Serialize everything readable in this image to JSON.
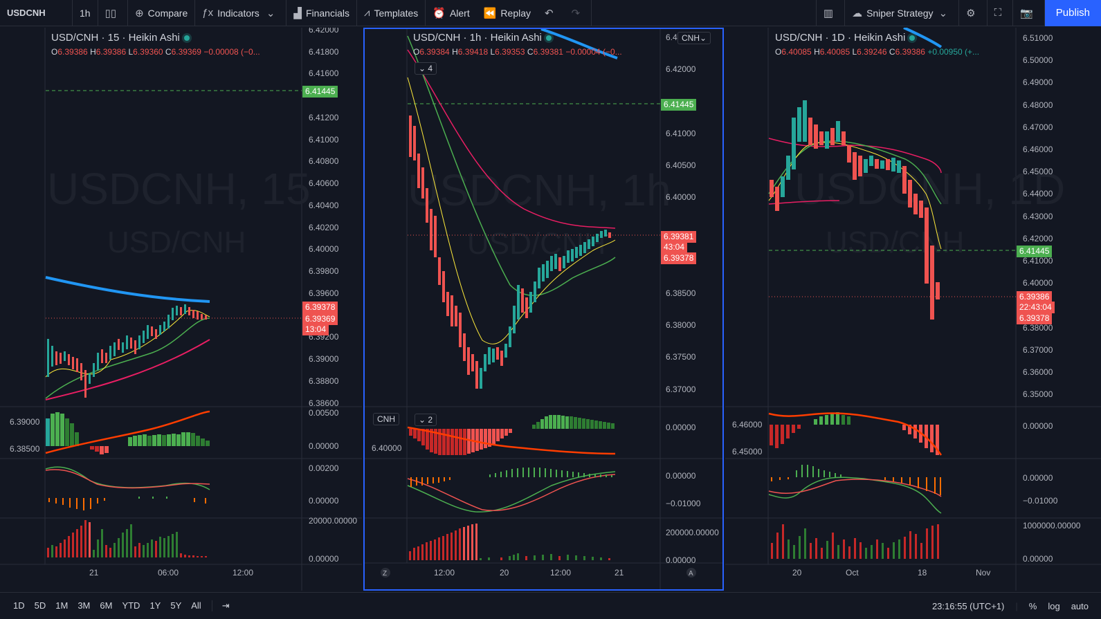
{
  "toolbar": {
    "symbol": "USDCNH",
    "interval": "1h",
    "compare": "Compare",
    "indicators": "Indicators",
    "financials": "Financials",
    "templates": "Templates",
    "alert": "Alert",
    "replay": "Replay",
    "strategy": "Sniper Strategy",
    "publish": "Publish"
  },
  "panes": [
    {
      "legend": "USD/CNH · 15 · Heikin Ashi",
      "ohlc": {
        "o": "6.39386",
        "h": "6.39386",
        "l": "6.39360",
        "c": "6.39369",
        "chg": "−0.00008 (−0..."
      },
      "watermark": "USDCNH, 15",
      "watermark2": "USD/CNH",
      "price_ticks": [
        "6.42000",
        "6.41800",
        "6.41600",
        "6.41445",
        "6.41200",
        "6.41000",
        "6.40800",
        "6.40600",
        "6.40400",
        "6.40200",
        "6.40000",
        "6.39800",
        "6.39600",
        "6.39378",
        "6.39369",
        "6.39200",
        "6.39000",
        "6.38800",
        "6.38600"
      ],
      "labels": {
        "alert": "6.41445",
        "last": "6.39378",
        "close": "6.39369",
        "countdown": "13:04"
      },
      "osc_ticks": {
        "o1a": "6.39000",
        "o1b": "6.38500",
        "o1r1": "0.00500",
        "o1r2": "0.00000",
        "o2r1": "0.00200",
        "o2r2": "0.00000",
        "o3r1": "20000.00000",
        "o3r2": "0.00000"
      },
      "time_ticks": [
        "21",
        "06:00",
        "12:00"
      ]
    },
    {
      "legend": "USD/CNH · 1h · Heikin Ashi",
      "ohlc": {
        "o": "6.39384",
        "h": "6.39418",
        "l": "6.39353",
        "c": "6.39381",
        "chg": "−0.00004 (−0..."
      },
      "watermark": "USDCNH, 1h",
      "watermark2": "USD/CNH",
      "badge_currency": "CNH",
      "badge_count": "4",
      "badge_count2": "2",
      "badge_cnh2": "CNH",
      "price_ticks": [
        "6.4",
        "6.42000",
        "6.41445",
        "6.41000",
        "6.40500",
        "6.40000",
        "6.39500",
        "6.39381",
        "6.39378",
        "6.38500",
        "6.38000",
        "6.37500",
        "6.37000"
      ],
      "labels": {
        "alert": "6.41445",
        "close": "6.39381",
        "countdown": "43:04",
        "last": "6.39378"
      },
      "osc_ticks": {
        "o1l": "6.40000",
        "o1r": "0.00000",
        "o2r1": "0.00000",
        "o2r2": "−0.01000",
        "o3r1": "200000.00000",
        "o3r2": "0.00000"
      },
      "time_ticks": [
        "12:00",
        "20",
        "12:00",
        "21"
      ],
      "scale_z": "Z",
      "scale_a": "A"
    },
    {
      "legend": "USD/CNH · 1D · Heikin Ashi",
      "ohlc": {
        "o": "6.40085",
        "h": "6.40085",
        "l": "6.39246",
        "c": "6.39386",
        "chg": "+0.00950 (+..."
      },
      "watermark": "USDCNH, 1D",
      "watermark2": "USD/CNH",
      "price_ticks": [
        "6.51000",
        "6.50000",
        "6.49000",
        "6.48000",
        "6.47000",
        "6.46000",
        "6.45000",
        "6.44000",
        "6.43000",
        "6.42000",
        "6.41445",
        "6.41000",
        "6.40000",
        "6.39386",
        "6.39378",
        "6.38000",
        "6.37000",
        "6.36000",
        "6.35000"
      ],
      "labels": {
        "alert": "6.41445",
        "close": "6.39386",
        "countdown": "22:43:04",
        "last": "6.39378"
      },
      "osc_ticks": {
        "o1l1": "6.46000",
        "o1l2": "6.45000",
        "o1r": "0.00000",
        "o2r1": "0.00000",
        "o2r2": "−0.01000",
        "o3r1": "1000000.00000",
        "o3r2": "0.00000"
      },
      "time_ticks": [
        "20",
        "Oct",
        "18",
        "Nov"
      ]
    }
  ],
  "bottom": {
    "ranges": [
      "1D",
      "5D",
      "1M",
      "3M",
      "6M",
      "YTD",
      "1Y",
      "5Y",
      "All"
    ],
    "time": "23:16:55 (UTC+1)",
    "percent": "%",
    "log": "log",
    "auto": "auto"
  },
  "colors": {
    "up": "#26a69a",
    "down": "#ef5350",
    "bg": "#131722",
    "grid": "#2a2e39",
    "accent": "#2962ff",
    "alert": "#4caf50"
  }
}
